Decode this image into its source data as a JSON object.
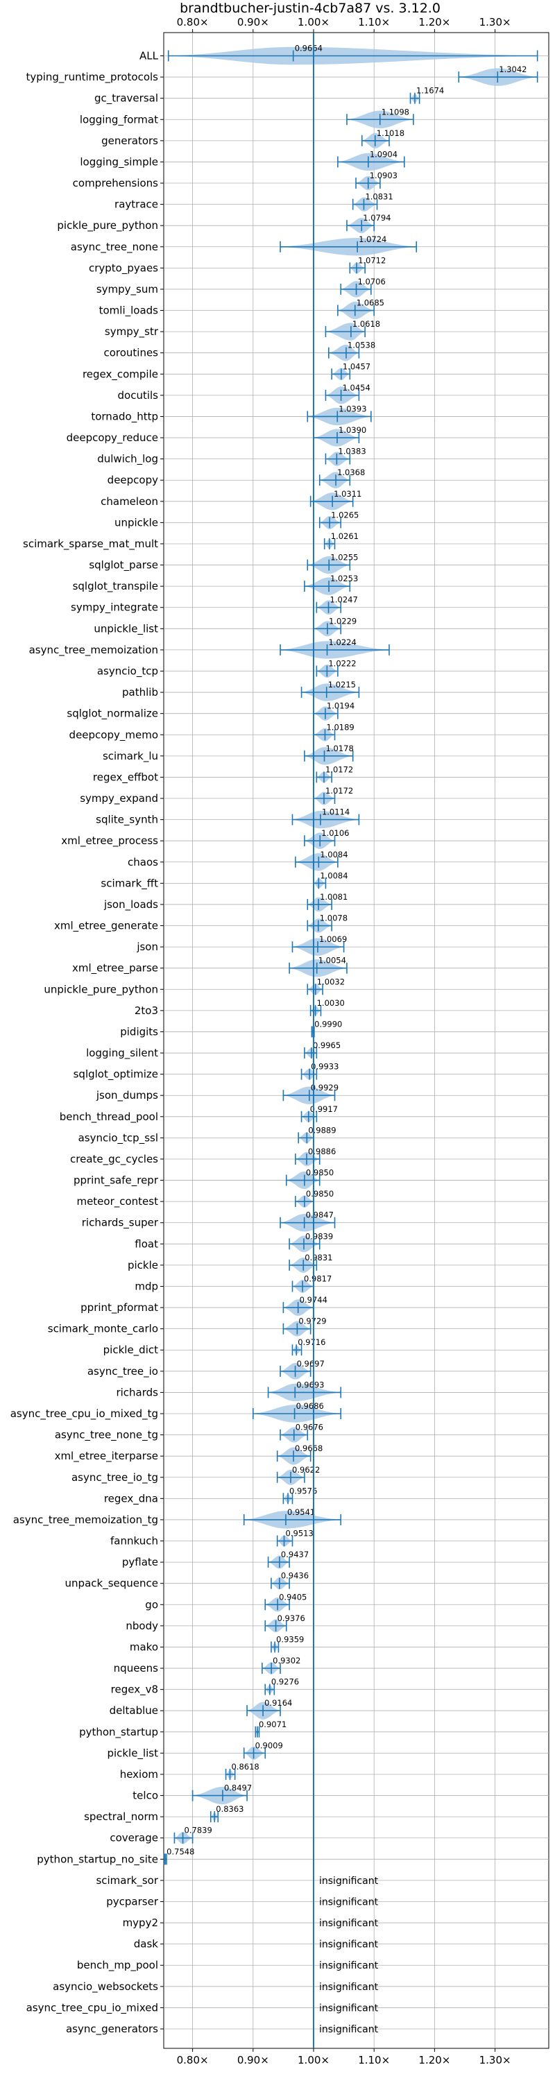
{
  "chart_data": {
    "type": "violin",
    "title": "brandtbucher-justin-4cb7a87 vs. 3.12.0",
    "xlabel": "",
    "ylabel": "",
    "xlim": [
      0.75,
      1.35
    ],
    "xticks": [
      0.8,
      0.9,
      1.0,
      1.1,
      1.2,
      1.3
    ],
    "xtick_labels": [
      "0.80×",
      "0.90×",
      "1.00×",
      "1.10×",
      "1.20×",
      "1.30×"
    ],
    "xtick_labels_top": true,
    "xtick_labels_bottom": true,
    "reference_line": 1.0,
    "grid": true,
    "colors": {
      "violin": "#a9c9e6",
      "line": "#1f77b4"
    },
    "insignificant_label": "insignificant",
    "items": [
      {
        "name": "ALL",
        "value": 0.9664,
        "value_label": "0.9664",
        "min": 0.76,
        "max": 1.37
      },
      {
        "name": "typing_runtime_protocols",
        "value": 1.3042,
        "value_label": "1.3042",
        "min": 1.24,
        "max": 1.37
      },
      {
        "name": "gc_traversal",
        "value": 1.1674,
        "value_label": "1.1674",
        "min": 1.16,
        "max": 1.175
      },
      {
        "name": "logging_format",
        "value": 1.1098,
        "value_label": "1.1098",
        "min": 1.055,
        "max": 1.165
      },
      {
        "name": "generators",
        "value": 1.1018,
        "value_label": "1.1018",
        "min": 1.08,
        "max": 1.125
      },
      {
        "name": "logging_simple",
        "value": 1.0904,
        "value_label": "1.0904",
        "min": 1.04,
        "max": 1.15
      },
      {
        "name": "comprehensions",
        "value": 1.0903,
        "value_label": "1.0903",
        "min": 1.07,
        "max": 1.11
      },
      {
        "name": "raytrace",
        "value": 1.0831,
        "value_label": "1.0831",
        "min": 1.065,
        "max": 1.105
      },
      {
        "name": "pickle_pure_python",
        "value": 1.0794,
        "value_label": "1.0794",
        "min": 1.055,
        "max": 1.1
      },
      {
        "name": "async_tree_none",
        "value": 1.0724,
        "value_label": "1.0724",
        "min": 0.945,
        "max": 1.17
      },
      {
        "name": "crypto_pyaes",
        "value": 1.0712,
        "value_label": "1.0712",
        "min": 1.06,
        "max": 1.085
      },
      {
        "name": "sympy_sum",
        "value": 1.0706,
        "value_label": "1.0706",
        "min": 1.045,
        "max": 1.095
      },
      {
        "name": "tomli_loads",
        "value": 1.0685,
        "value_label": "1.0685",
        "min": 1.04,
        "max": 1.1
      },
      {
        "name": "sympy_str",
        "value": 1.0618,
        "value_label": "1.0618",
        "min": 1.02,
        "max": 1.085
      },
      {
        "name": "coroutines",
        "value": 1.0538,
        "value_label": "1.0538",
        "min": 1.025,
        "max": 1.075
      },
      {
        "name": "regex_compile",
        "value": 1.0457,
        "value_label": "1.0457",
        "min": 1.03,
        "max": 1.06
      },
      {
        "name": "docutils",
        "value": 1.0454,
        "value_label": "1.0454",
        "min": 1.02,
        "max": 1.075
      },
      {
        "name": "tornado_http",
        "value": 1.0393,
        "value_label": "1.0393",
        "min": 0.99,
        "max": 1.095
      },
      {
        "name": "deepcopy_reduce",
        "value": 1.039,
        "value_label": "1.0390",
        "min": 1.0,
        "max": 1.075
      },
      {
        "name": "dulwich_log",
        "value": 1.0383,
        "value_label": "1.0383",
        "min": 1.02,
        "max": 1.06
      },
      {
        "name": "deepcopy",
        "value": 1.0368,
        "value_label": "1.0368",
        "min": 1.01,
        "max": 1.06
      },
      {
        "name": "chameleon",
        "value": 1.0311,
        "value_label": "1.0311",
        "min": 0.995,
        "max": 1.065
      },
      {
        "name": "unpickle",
        "value": 1.0265,
        "value_label": "1.0265",
        "min": 1.01,
        "max": 1.045
      },
      {
        "name": "scimark_sparse_mat_mult",
        "value": 1.0261,
        "value_label": "1.0261",
        "min": 1.018,
        "max": 1.035
      },
      {
        "name": "sqlglot_parse",
        "value": 1.0255,
        "value_label": "1.0255",
        "min": 0.99,
        "max": 1.06
      },
      {
        "name": "sqlglot_transpile",
        "value": 1.0253,
        "value_label": "1.0253",
        "min": 0.985,
        "max": 1.06
      },
      {
        "name": "sympy_integrate",
        "value": 1.0247,
        "value_label": "1.0247",
        "min": 1.005,
        "max": 1.045
      },
      {
        "name": "unpickle_list",
        "value": 1.0229,
        "value_label": "1.0229",
        "min": 1.0,
        "max": 1.045
      },
      {
        "name": "async_tree_memoization",
        "value": 1.0224,
        "value_label": "1.0224",
        "min": 0.945,
        "max": 1.125
      },
      {
        "name": "asyncio_tcp",
        "value": 1.0222,
        "value_label": "1.0222",
        "min": 1.005,
        "max": 1.04
      },
      {
        "name": "pathlib",
        "value": 1.0215,
        "value_label": "1.0215",
        "min": 0.98,
        "max": 1.075
      },
      {
        "name": "sqlglot_normalize",
        "value": 1.0194,
        "value_label": "1.0194",
        "min": 1.0,
        "max": 1.04
      },
      {
        "name": "deepcopy_memo",
        "value": 1.0189,
        "value_label": "1.0189",
        "min": 1.0,
        "max": 1.035
      },
      {
        "name": "scimark_lu",
        "value": 1.0178,
        "value_label": "1.0178",
        "min": 0.985,
        "max": 1.065
      },
      {
        "name": "regex_effbot",
        "value": 1.0172,
        "value_label": "1.0172",
        "min": 1.005,
        "max": 1.03
      },
      {
        "name": "sympy_expand",
        "value": 1.0172,
        "value_label": "1.0172",
        "min": 1.0,
        "max": 1.035
      },
      {
        "name": "sqlite_synth",
        "value": 1.0114,
        "value_label": "1.0114",
        "min": 0.965,
        "max": 1.075
      },
      {
        "name": "xml_etree_process",
        "value": 1.0106,
        "value_label": "1.0106",
        "min": 0.985,
        "max": 1.035
      },
      {
        "name": "chaos",
        "value": 1.0084,
        "value_label": "1.0084",
        "min": 0.97,
        "max": 1.04
      },
      {
        "name": "scimark_fft",
        "value": 1.0084,
        "value_label": "1.0084",
        "min": 1.0,
        "max": 1.02
      },
      {
        "name": "json_loads",
        "value": 1.0081,
        "value_label": "1.0081",
        "min": 0.99,
        "max": 1.03
      },
      {
        "name": "xml_etree_generate",
        "value": 1.0078,
        "value_label": "1.0078",
        "min": 0.99,
        "max": 1.03
      },
      {
        "name": "json",
        "value": 1.0069,
        "value_label": "1.0069",
        "min": 0.965,
        "max": 1.05
      },
      {
        "name": "xml_etree_parse",
        "value": 1.0054,
        "value_label": "1.0054",
        "min": 0.96,
        "max": 1.055
      },
      {
        "name": "unpickle_pure_python",
        "value": 1.0032,
        "value_label": "1.0032",
        "min": 0.99,
        "max": 1.015
      },
      {
        "name": "2to3",
        "value": 1.003,
        "value_label": "1.0030",
        "min": 0.995,
        "max": 1.012
      },
      {
        "name": "pidigits",
        "value": 0.999,
        "value_label": "0.9990",
        "min": 0.997,
        "max": 1.001
      },
      {
        "name": "logging_silent",
        "value": 0.9965,
        "value_label": "0.9965",
        "min": 0.985,
        "max": 1.005
      },
      {
        "name": "sqlglot_optimize",
        "value": 0.9933,
        "value_label": "0.9933",
        "min": 0.98,
        "max": 1.005
      },
      {
        "name": "json_dumps",
        "value": 0.9929,
        "value_label": "0.9929",
        "min": 0.95,
        "max": 1.035
      },
      {
        "name": "bench_thread_pool",
        "value": 0.9917,
        "value_label": "0.9917",
        "min": 0.98,
        "max": 1.005
      },
      {
        "name": "asyncio_tcp_ssl",
        "value": 0.9889,
        "value_label": "0.9889",
        "min": 0.975,
        "max": 1.0
      },
      {
        "name": "create_gc_cycles",
        "value": 0.9886,
        "value_label": "0.9886",
        "min": 0.97,
        "max": 1.01
      },
      {
        "name": "pprint_safe_repr",
        "value": 0.985,
        "value_label": "0.9850",
        "min": 0.955,
        "max": 1.01
      },
      {
        "name": "meteor_contest",
        "value": 0.985,
        "value_label": "0.9850",
        "min": 0.97,
        "max": 1.0
      },
      {
        "name": "richards_super",
        "value": 0.9847,
        "value_label": "0.9847",
        "min": 0.945,
        "max": 1.035
      },
      {
        "name": "float",
        "value": 0.9839,
        "value_label": "0.9839",
        "min": 0.96,
        "max": 1.01
      },
      {
        "name": "pickle",
        "value": 0.9831,
        "value_label": "0.9831",
        "min": 0.96,
        "max": 1.005
      },
      {
        "name": "mdp",
        "value": 0.9817,
        "value_label": "0.9817",
        "min": 0.965,
        "max": 1.0
      },
      {
        "name": "pprint_pformat",
        "value": 0.9744,
        "value_label": "0.9744",
        "min": 0.95,
        "max": 1.0
      },
      {
        "name": "scimark_monte_carlo",
        "value": 0.9729,
        "value_label": "0.9729",
        "min": 0.95,
        "max": 0.995
      },
      {
        "name": "pickle_dict",
        "value": 0.9716,
        "value_label": "0.9716",
        "min": 0.965,
        "max": 0.98
      },
      {
        "name": "async_tree_io",
        "value": 0.9697,
        "value_label": "0.9697",
        "min": 0.945,
        "max": 0.995
      },
      {
        "name": "richards",
        "value": 0.9693,
        "value_label": "0.9693",
        "min": 0.925,
        "max": 1.045
      },
      {
        "name": "async_tree_cpu_io_mixed_tg",
        "value": 0.9686,
        "value_label": "0.9686",
        "min": 0.9,
        "max": 1.045
      },
      {
        "name": "async_tree_none_tg",
        "value": 0.9676,
        "value_label": "0.9676",
        "min": 0.945,
        "max": 0.99
      },
      {
        "name": "xml_etree_iterparse",
        "value": 0.9668,
        "value_label": "0.9668",
        "min": 0.94,
        "max": 0.995
      },
      {
        "name": "async_tree_io_tg",
        "value": 0.9622,
        "value_label": "0.9622",
        "min": 0.94,
        "max": 0.985
      },
      {
        "name": "regex_dna",
        "value": 0.9576,
        "value_label": "0.9576",
        "min": 0.95,
        "max": 0.965
      },
      {
        "name": "async_tree_memoization_tg",
        "value": 0.9541,
        "value_label": "0.9541",
        "min": 0.885,
        "max": 1.045
      },
      {
        "name": "fannkuch",
        "value": 0.9513,
        "value_label": "0.9513",
        "min": 0.94,
        "max": 0.965
      },
      {
        "name": "pyflate",
        "value": 0.9437,
        "value_label": "0.9437",
        "min": 0.925,
        "max": 0.96
      },
      {
        "name": "unpack_sequence",
        "value": 0.9436,
        "value_label": "0.9436",
        "min": 0.93,
        "max": 0.96
      },
      {
        "name": "go",
        "value": 0.9405,
        "value_label": "0.9405",
        "min": 0.92,
        "max": 0.96
      },
      {
        "name": "nbody",
        "value": 0.9376,
        "value_label": "0.9376",
        "min": 0.92,
        "max": 0.955
      },
      {
        "name": "mako",
        "value": 0.9359,
        "value_label": "0.9359",
        "min": 0.93,
        "max": 0.942
      },
      {
        "name": "nqueens",
        "value": 0.9302,
        "value_label": "0.9302",
        "min": 0.915,
        "max": 0.945
      },
      {
        "name": "regex_v8",
        "value": 0.9276,
        "value_label": "0.9276",
        "min": 0.92,
        "max": 0.935
      },
      {
        "name": "deltablue",
        "value": 0.9164,
        "value_label": "0.9164",
        "min": 0.89,
        "max": 0.945
      },
      {
        "name": "python_startup",
        "value": 0.9071,
        "value_label": "0.9071",
        "min": 0.904,
        "max": 0.91
      },
      {
        "name": "pickle_list",
        "value": 0.9009,
        "value_label": "0.9009",
        "min": 0.885,
        "max": 0.92
      },
      {
        "name": "hexiom",
        "value": 0.8618,
        "value_label": "0.8618",
        "min": 0.855,
        "max": 0.87
      },
      {
        "name": "telco",
        "value": 0.8497,
        "value_label": "0.8497",
        "min": 0.8,
        "max": 0.89
      },
      {
        "name": "spectral_norm",
        "value": 0.8363,
        "value_label": "0.8363",
        "min": 0.83,
        "max": 0.842
      },
      {
        "name": "coverage",
        "value": 0.7839,
        "value_label": "0.7839",
        "min": 0.77,
        "max": 0.8
      },
      {
        "name": "python_startup_no_site",
        "value": 0.7548,
        "value_label": "0.7548",
        "min": 0.753,
        "max": 0.757
      },
      {
        "name": "scimark_sor",
        "value": null,
        "value_label": ""
      },
      {
        "name": "pycparser",
        "value": null,
        "value_label": ""
      },
      {
        "name": "mypy2",
        "value": null,
        "value_label": ""
      },
      {
        "name": "dask",
        "value": null,
        "value_label": ""
      },
      {
        "name": "bench_mp_pool",
        "value": null,
        "value_label": ""
      },
      {
        "name": "asyncio_websockets",
        "value": null,
        "value_label": ""
      },
      {
        "name": "async_tree_cpu_io_mixed",
        "value": null,
        "value_label": ""
      },
      {
        "name": "async_generators",
        "value": null,
        "value_label": ""
      }
    ]
  }
}
